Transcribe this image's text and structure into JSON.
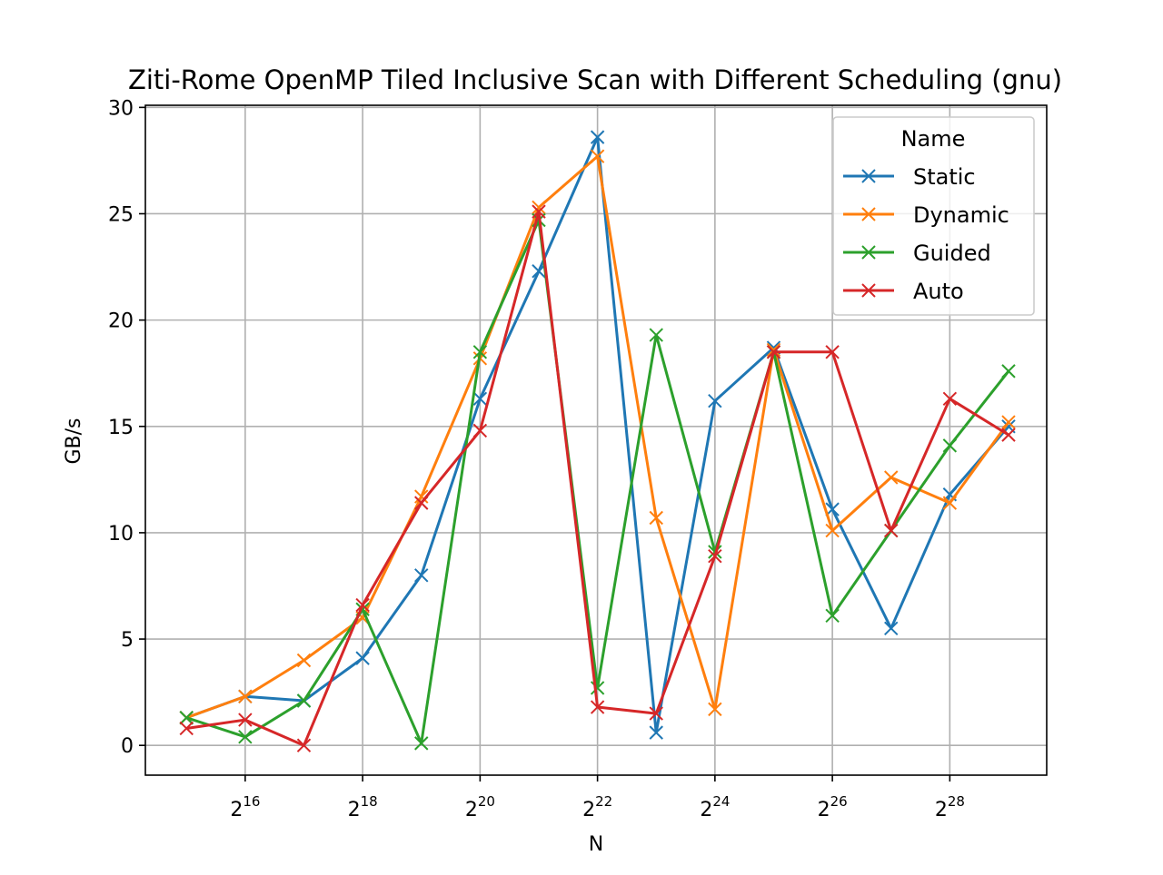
{
  "chart_data": {
    "type": "line",
    "title": "Ziti-Rome OpenMP Tiled Inclusive Scan with Different Scheduling (gnu)",
    "xlabel": "N",
    "ylabel": "GB/s",
    "xscale": "log2",
    "xlim_exp": [
      14.3,
      29.65
    ],
    "ylim": [
      -1.4,
      30.1
    ],
    "x_exponents": [
      15,
      16,
      17,
      18,
      19,
      20,
      21,
      22,
      23,
      24,
      25,
      26,
      27,
      28,
      29
    ],
    "x_tick_base": "2",
    "x_tick_exponents": [
      "16",
      "18",
      "20",
      "22",
      "24",
      "26",
      "28"
    ],
    "y_ticks": [
      0,
      5,
      10,
      15,
      20,
      25,
      30
    ],
    "grid": true,
    "marker": "x",
    "legend": {
      "title": "Name",
      "placement": "top-right"
    },
    "series": [
      {
        "name": "Static",
        "color": "#1f77b4",
        "values": [
          1.3,
          2.3,
          2.1,
          4.1,
          8.0,
          16.3,
          22.3,
          28.6,
          0.6,
          16.2,
          18.7,
          11.1,
          5.5,
          11.8,
          15.0
        ]
      },
      {
        "name": "Dynamic",
        "color": "#ff7f0e",
        "values": [
          1.3,
          2.3,
          4.0,
          6.0,
          11.7,
          18.2,
          25.3,
          27.7,
          10.7,
          1.7,
          18.6,
          10.1,
          12.6,
          11.4,
          15.2
        ]
      },
      {
        "name": "Guided",
        "color": "#2ca02c",
        "values": [
          1.3,
          0.4,
          2.1,
          6.4,
          0.1,
          18.5,
          24.7,
          2.7,
          19.3,
          9.1,
          18.5,
          6.1,
          10.1,
          14.1,
          17.6
        ]
      },
      {
        "name": "Auto",
        "color": "#d62728",
        "values": [
          0.8,
          1.2,
          0.0,
          6.6,
          11.4,
          14.8,
          25.1,
          1.8,
          1.5,
          8.9,
          18.5,
          18.5,
          10.1,
          16.3,
          14.6
        ]
      }
    ]
  }
}
